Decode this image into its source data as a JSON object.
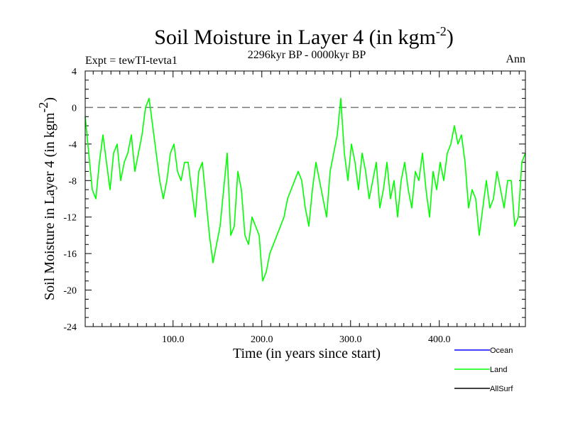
{
  "chart_data": {
    "type": "line",
    "title": "Soil Moisture in Layer 4 (in kgm",
    "title_sup": "-2",
    "title_close": ")",
    "subtitle_left": "Expt = tewTI-tevta1",
    "subtitle_center": "2296kyr BP - 0000kyr BP",
    "subtitle_right": "Ann",
    "xlabel": "Time (in years since start)",
    "ylabel": "Soil Moisture in Layer 4 (in kgm",
    "ylabel_sup": "-2",
    "ylabel_close": ")",
    "xlim": [
      1,
      497
    ],
    "ylim": [
      -24,
      4
    ],
    "x_ticks": [
      100,
      200,
      300,
      400
    ],
    "x_tick_labels": [
      "100.0",
      "200.0",
      "300.0",
      "400.0"
    ],
    "y_ticks": [
      4,
      0,
      -4,
      -8,
      -12,
      -16,
      -20,
      -24
    ],
    "y_tick_labels": [
      "4",
      "0",
      "-4",
      "-8",
      "-12",
      "-16",
      "-20",
      "-24"
    ],
    "reference_line": 0,
    "series": [
      {
        "name": "Ocean",
        "color": "#0000ff",
        "x": [],
        "values": []
      },
      {
        "name": "Land",
        "color": "#00ff00",
        "x": [
          1,
          5,
          9,
          13,
          17,
          21,
          25,
          29,
          33,
          37,
          41,
          45,
          49,
          53,
          57,
          61,
          65,
          69,
          73,
          77,
          81,
          85,
          89,
          93,
          97,
          101,
          105,
          109,
          113,
          117,
          121,
          125,
          129,
          133,
          137,
          141,
          145,
          149,
          153,
          157,
          161,
          165,
          169,
          173,
          177,
          181,
          185,
          189,
          193,
          197,
          201,
          205,
          209,
          213,
          217,
          221,
          225,
          229,
          233,
          237,
          241,
          245,
          249,
          253,
          257,
          261,
          265,
          269,
          273,
          277,
          281,
          285,
          289,
          293,
          297,
          301,
          305,
          309,
          313,
          317,
          321,
          325,
          329,
          333,
          337,
          341,
          345,
          349,
          353,
          357,
          361,
          365,
          369,
          373,
          377,
          381,
          385,
          389,
          393,
          397,
          401,
          405,
          409,
          413,
          417,
          421,
          425,
          429,
          433,
          437,
          441,
          445,
          449,
          453,
          457,
          461,
          465,
          469,
          473,
          477,
          481,
          485,
          489,
          493,
          497
        ],
        "values": [
          -1,
          -5,
          -9,
          -10,
          -6,
          -3,
          -6,
          -9,
          -5,
          -4,
          -8,
          -6,
          -5,
          -3,
          -7,
          -5,
          -3,
          0,
          1,
          -2,
          -5,
          -8,
          -10,
          -8,
          -5,
          -4,
          -7,
          -8,
          -6,
          -6,
          -9,
          -12,
          -7,
          -6,
          -10,
          -14,
          -17,
          -15,
          -13,
          -9,
          -5,
          -14,
          -13,
          -7,
          -9,
          -14,
          -15,
          -12,
          -13,
          -14,
          -19,
          -18,
          -16,
          -15,
          -14,
          -13,
          -12,
          -10,
          -9,
          -8,
          -7,
          -8,
          -11,
          -13,
          -9,
          -6,
          -8,
          -10,
          -12,
          -7,
          -5,
          -3,
          1,
          -5,
          -8,
          -4,
          -6,
          -9,
          -5,
          -7,
          -10,
          -8,
          -6,
          -11,
          -9,
          -6,
          -10,
          -8,
          -12,
          -8,
          -6,
          -9,
          -11,
          -7,
          -8,
          -5,
          -9,
          -12,
          -7,
          -9,
          -6,
          -8,
          -5,
          -4,
          -2,
          -4,
          -3,
          -6,
          -11,
          -9,
          -10,
          -14,
          -11,
          -8,
          -11,
          -10,
          -7,
          -9,
          -11,
          -8,
          -8,
          -13,
          -12,
          -6,
          -5
        ]
      },
      {
        "name": "AllSurf",
        "color": "#000000",
        "x": [],
        "values": []
      }
    ],
    "legend_position": "bottom-right"
  }
}
